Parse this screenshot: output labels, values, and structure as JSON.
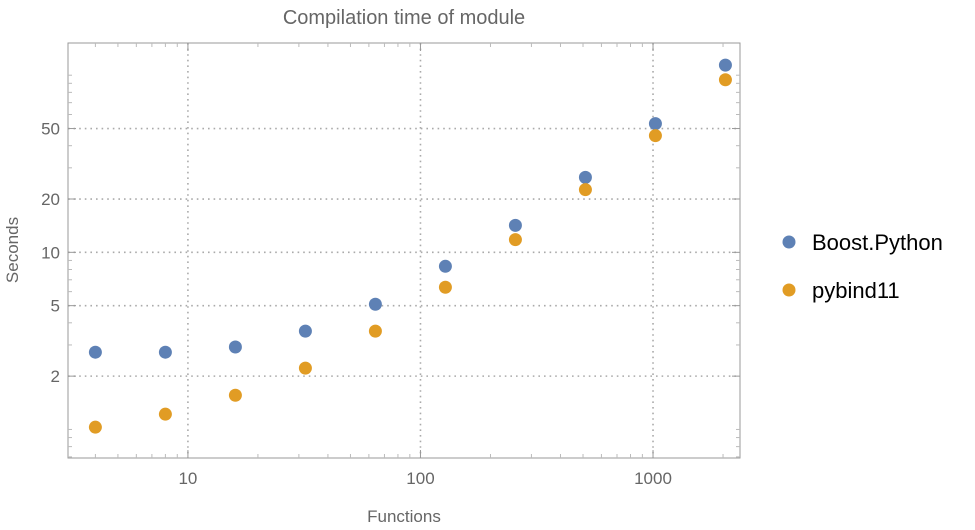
{
  "chart_data": {
    "type": "scatter",
    "title": "Compilation time of module",
    "xlabel": "Functions",
    "ylabel": "Seconds",
    "xscale": "log",
    "yscale": "log",
    "xlim": [
      3.05,
      2366
    ],
    "ylim": [
      0.69,
      152
    ],
    "xticks": [
      10,
      100,
      1000
    ],
    "xtick_labels": [
      "10",
      "100",
      "1000"
    ],
    "yticks": [
      2,
      5,
      10,
      20,
      50
    ],
    "ytick_labels": [
      "2",
      "5",
      "10",
      "20",
      "50"
    ],
    "grid": true,
    "legend_position": "right",
    "x": [
      4,
      8,
      16,
      32,
      64,
      128,
      256,
      512,
      1024,
      2048
    ],
    "series": [
      {
        "name": "Boost.Python",
        "color": "#5E81B5",
        "values": [
          2.73,
          2.73,
          2.92,
          3.59,
          5.09,
          8.34,
          14.2,
          26.5,
          53.3,
          114
        ]
      },
      {
        "name": "pybind11",
        "color": "#E19C24",
        "values": [
          1.03,
          1.22,
          1.56,
          2.22,
          3.59,
          6.35,
          11.8,
          22.6,
          45.6,
          94.3
        ]
      }
    ]
  }
}
